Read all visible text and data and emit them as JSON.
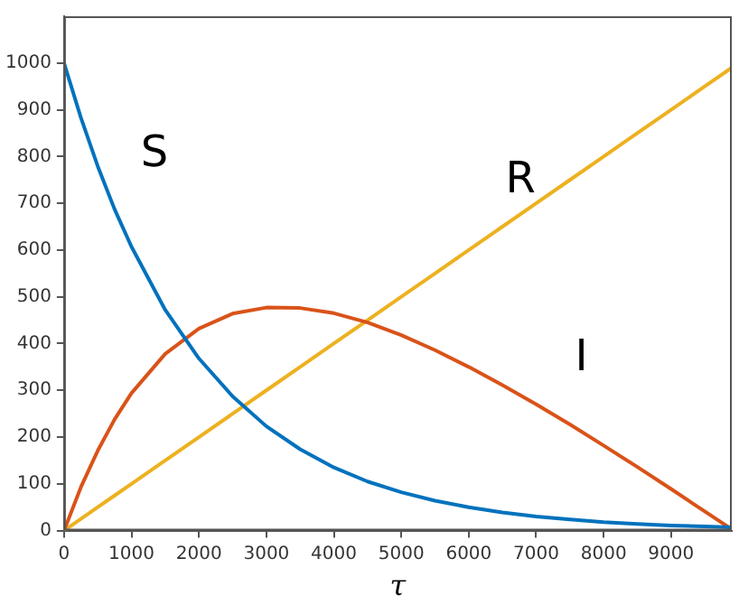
{
  "chart_data": {
    "type": "line",
    "xlabel": "τ",
    "x": [
      0,
      250,
      500,
      750,
      1000,
      1500,
      2000,
      2500,
      3000,
      3500,
      4000,
      4500,
      5000,
      5500,
      6000,
      6500,
      7000,
      7500,
      8000,
      8500,
      9000,
      9500,
      9900
    ],
    "series": [
      {
        "name": "S",
        "color": "#0072bd",
        "values": [
          1000,
          883,
          779,
          687,
          607,
          472,
          368,
          287,
          223,
          174,
          135,
          105,
          82,
          64,
          50,
          39,
          30,
          24,
          18,
          14,
          11,
          9,
          7
        ]
      },
      {
        "name": "I",
        "color": "#d95319",
        "values": [
          0,
          93,
          171,
          238,
          294,
          378,
          432,
          464,
          477,
          476,
          465,
          445,
          418,
          386,
          350,
          311,
          270,
          227,
          182,
          136,
          89,
          41,
          3
        ]
      },
      {
        "name": "R",
        "color": "#edb120",
        "values": [
          0,
          25,
          50,
          75,
          100,
          150,
          200,
          250,
          300,
          350,
          400,
          450,
          500,
          550,
          600,
          650,
          700,
          750,
          800,
          850,
          900,
          950,
          990
        ]
      }
    ],
    "xlim": [
      0,
      9900
    ],
    "xticks": [
      0,
      1000,
      2000,
      3000,
      4000,
      5000,
      6000,
      7000,
      8000,
      9000
    ],
    "ylim": [
      0,
      1100
    ],
    "yticks": [
      0,
      100,
      200,
      300,
      400,
      500,
      600,
      700,
      800,
      900,
      1000
    ],
    "grid": false,
    "legend": false,
    "marker": "none",
    "line_style": "solid"
  }
}
